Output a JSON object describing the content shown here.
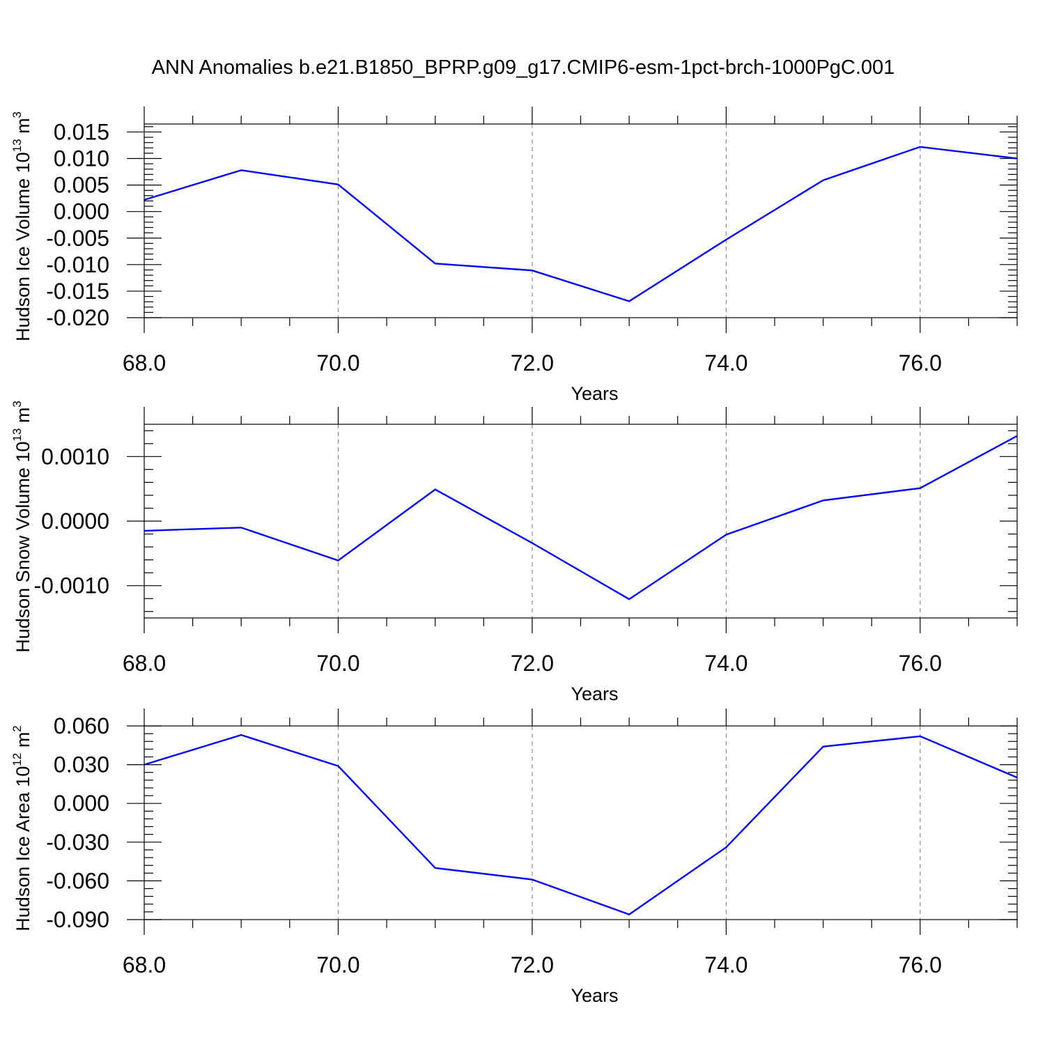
{
  "title": "ANN Anomalies b.e21.B1850_BPRP.g09_g17.CMIP6-esm-1pct-brch-1000PgC.001",
  "colors": {
    "series": "#0000ff",
    "axes": "#000000",
    "grid": "#777777"
  },
  "chart_data": [
    {
      "type": "line",
      "ylabel": "Hudson Ice Volume",
      "ylabel_unit_base": "10",
      "ylabel_unit_exp": "13",
      "ylabel_unit_suffix": "m",
      "ylabel_unit_suffix_exp": "3",
      "xlabel": "Years",
      "xlim": [
        68,
        77
      ],
      "ylim": [
        -0.02,
        0.0165
      ],
      "x_ticks": [
        68,
        70,
        72,
        74,
        76
      ],
      "x_tick_labels": [
        "68.0",
        "70.0",
        "72.0",
        "74.0",
        "76.0"
      ],
      "y_ticks": [
        0.015,
        0.01,
        0.005,
        0.0,
        -0.005,
        -0.01,
        -0.015,
        -0.02
      ],
      "y_tick_labels": [
        "0.015",
        "0.010",
        "0.005",
        "0.000",
        "-0.005",
        "-0.010",
        "-0.015",
        "-0.020"
      ],
      "y_minor_step": 0.001,
      "x": [
        68,
        69,
        70,
        71,
        72,
        73,
        74,
        75,
        76,
        77
      ],
      "values": [
        0.0022,
        0.0078,
        0.0051,
        -0.0098,
        -0.0111,
        -0.0169,
        -0.0053,
        0.0059,
        0.0122,
        0.01
      ]
    },
    {
      "type": "line",
      "ylabel": "Hudson Snow Volume",
      "ylabel_unit_base": "10",
      "ylabel_unit_exp": "13",
      "ylabel_unit_suffix": "m",
      "ylabel_unit_suffix_exp": "3",
      "xlabel": "Years",
      "xlim": [
        68,
        77
      ],
      "ylim": [
        -0.0015,
        0.0015
      ],
      "x_ticks": [
        68,
        70,
        72,
        74,
        76
      ],
      "x_tick_labels": [
        "68.0",
        "70.0",
        "72.0",
        "74.0",
        "76.0"
      ],
      "y_ticks": [
        0.001,
        0.0,
        -0.001
      ],
      "y_tick_labels": [
        "0.0010",
        "0.0000",
        "-0.0010"
      ],
      "y_minor_step": 0.0002,
      "x": [
        68,
        69,
        70,
        71,
        72,
        73,
        74,
        75,
        76,
        77
      ],
      "values": [
        -0.00015,
        -0.0001,
        -0.00061,
        0.00049,
        -0.00034,
        -0.00121,
        -0.00021,
        0.00032,
        0.00051,
        0.00132
      ]
    },
    {
      "type": "line",
      "ylabel": "Hudson Ice Area",
      "ylabel_unit_base": "10",
      "ylabel_unit_exp": "12",
      "ylabel_unit_suffix": "m",
      "ylabel_unit_suffix_exp": "2",
      "xlabel": "Years",
      "xlim": [
        68,
        77
      ],
      "ylim": [
        -0.09,
        0.06
      ],
      "x_ticks": [
        68,
        70,
        72,
        74,
        76
      ],
      "x_tick_labels": [
        "68.0",
        "70.0",
        "72.0",
        "74.0",
        "76.0"
      ],
      "y_ticks": [
        0.06,
        0.03,
        0.0,
        -0.03,
        -0.06,
        -0.09
      ],
      "y_tick_labels": [
        "0.060",
        "0.030",
        "0.000",
        "-0.030",
        "-0.060",
        "-0.090"
      ],
      "y_minor_step": 0.006,
      "x": [
        68,
        69,
        70,
        71,
        72,
        73,
        74,
        75,
        76,
        77
      ],
      "values": [
        0.03,
        0.053,
        0.029,
        -0.05,
        -0.059,
        -0.086,
        -0.034,
        0.044,
        0.052,
        0.02
      ]
    }
  ]
}
